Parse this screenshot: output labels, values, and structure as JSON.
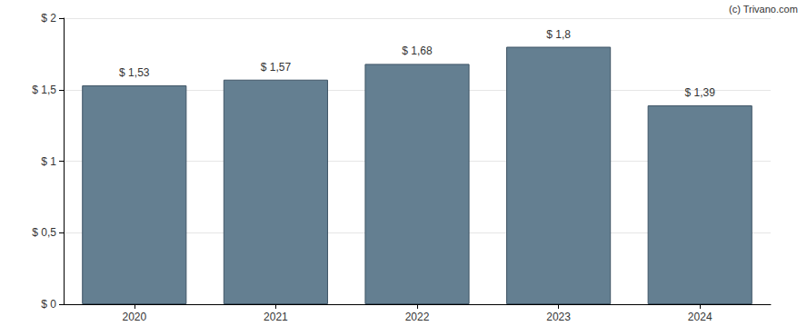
{
  "chart_data": {
    "type": "bar",
    "annotations": [
      "(c) Trivano.com"
    ],
    "categories": [
      "2020",
      "2021",
      "2022",
      "2023",
      "2024"
    ],
    "values": [
      1.53,
      1.57,
      1.68,
      1.8,
      1.39
    ],
    "value_labels": [
      "$ 1,53",
      "$ 1,57",
      "$ 1,68",
      "$ 1,8",
      "$ 1,39"
    ],
    "data_labels": true,
    "color": "#647f91",
    "ylim": [
      0,
      2
    ],
    "yticks": [
      {
        "value": 0,
        "label": "$ 0"
      },
      {
        "value": 0.5,
        "label": "$ 0,5"
      },
      {
        "value": 1,
        "label": "$ 1"
      },
      {
        "value": 1.5,
        "label": "$ 1,5"
      },
      {
        "value": 2,
        "label": "$ 2"
      }
    ],
    "grid": true
  }
}
